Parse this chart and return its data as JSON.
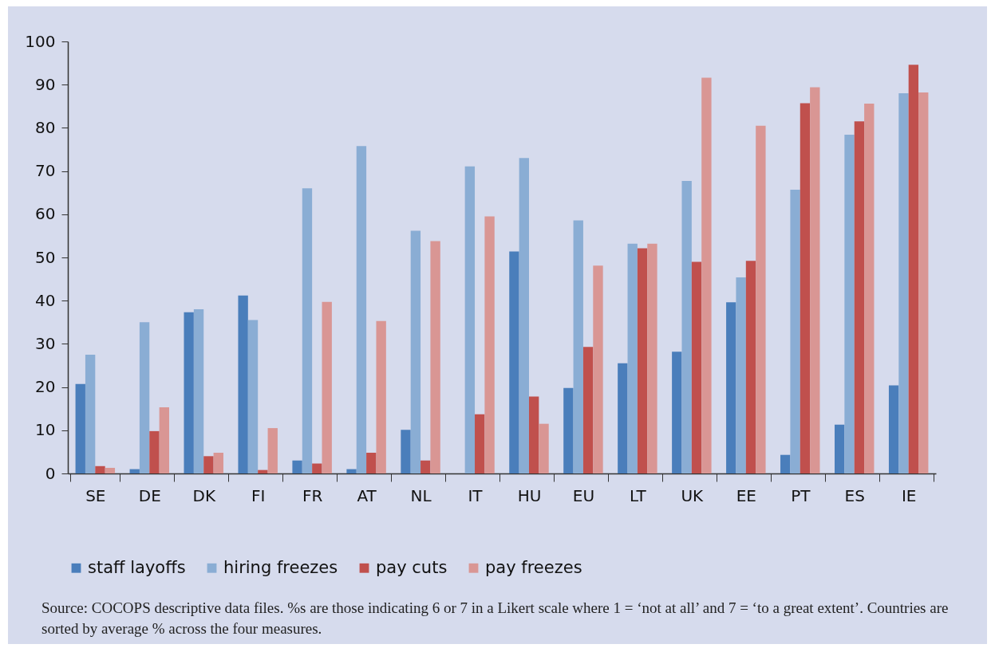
{
  "chart_data": {
    "type": "bar",
    "categories": [
      "SE",
      "DE",
      "DK",
      "FI",
      "FR",
      "AT",
      "NL",
      "IT",
      "HU",
      "EU",
      "LT",
      "UK",
      "EE",
      "PT",
      "ES",
      "IE"
    ],
    "series": [
      {
        "name": "staff layoffs",
        "color": "#4a7ebb",
        "values": [
          20.7,
          1,
          37.3,
          41.2,
          3,
          1,
          10.1,
          0,
          51.4,
          19.8,
          25.5,
          28.2,
          39.6,
          4.3,
          11.3,
          20.4
        ]
      },
      {
        "name": "hiring freezes",
        "color": "#8aadd4",
        "values": [
          27.5,
          35,
          38,
          35.5,
          66,
          75.8,
          56.2,
          71.1,
          73,
          58.6,
          53.2,
          67.7,
          45.4,
          65.7,
          78.4,
          88
        ]
      },
      {
        "name": "pay cuts",
        "color": "#c0504d",
        "values": [
          1.7,
          9.8,
          4,
          0.8,
          2.3,
          4.8,
          3,
          13.7,
          17.8,
          29.3,
          52.1,
          49,
          49.2,
          85.7,
          81.5,
          94.6
        ]
      },
      {
        "name": "pay freezes",
        "color": "#d99694",
        "values": [
          1.3,
          15.3,
          4.8,
          10.5,
          39.7,
          35.3,
          53.8,
          59.5,
          11.5,
          48.1,
          53.2,
          91.6,
          80.5,
          89.4,
          85.6,
          88.2
        ]
      }
    ],
    "ylim": [
      0,
      100
    ],
    "yticks": [
      0,
      10,
      20,
      30,
      40,
      50,
      60,
      70,
      80,
      90,
      100
    ],
    "grid": false,
    "legend": "bottom",
    "annotations": [
      "Source: COCOPS descriptive data files. %s are those indicating 6 or 7 in a Likert scale where 1 = ‘not at all’ and 7 = ‘to a great extent’. Countries are sorted by average % across the four measures."
    ]
  }
}
